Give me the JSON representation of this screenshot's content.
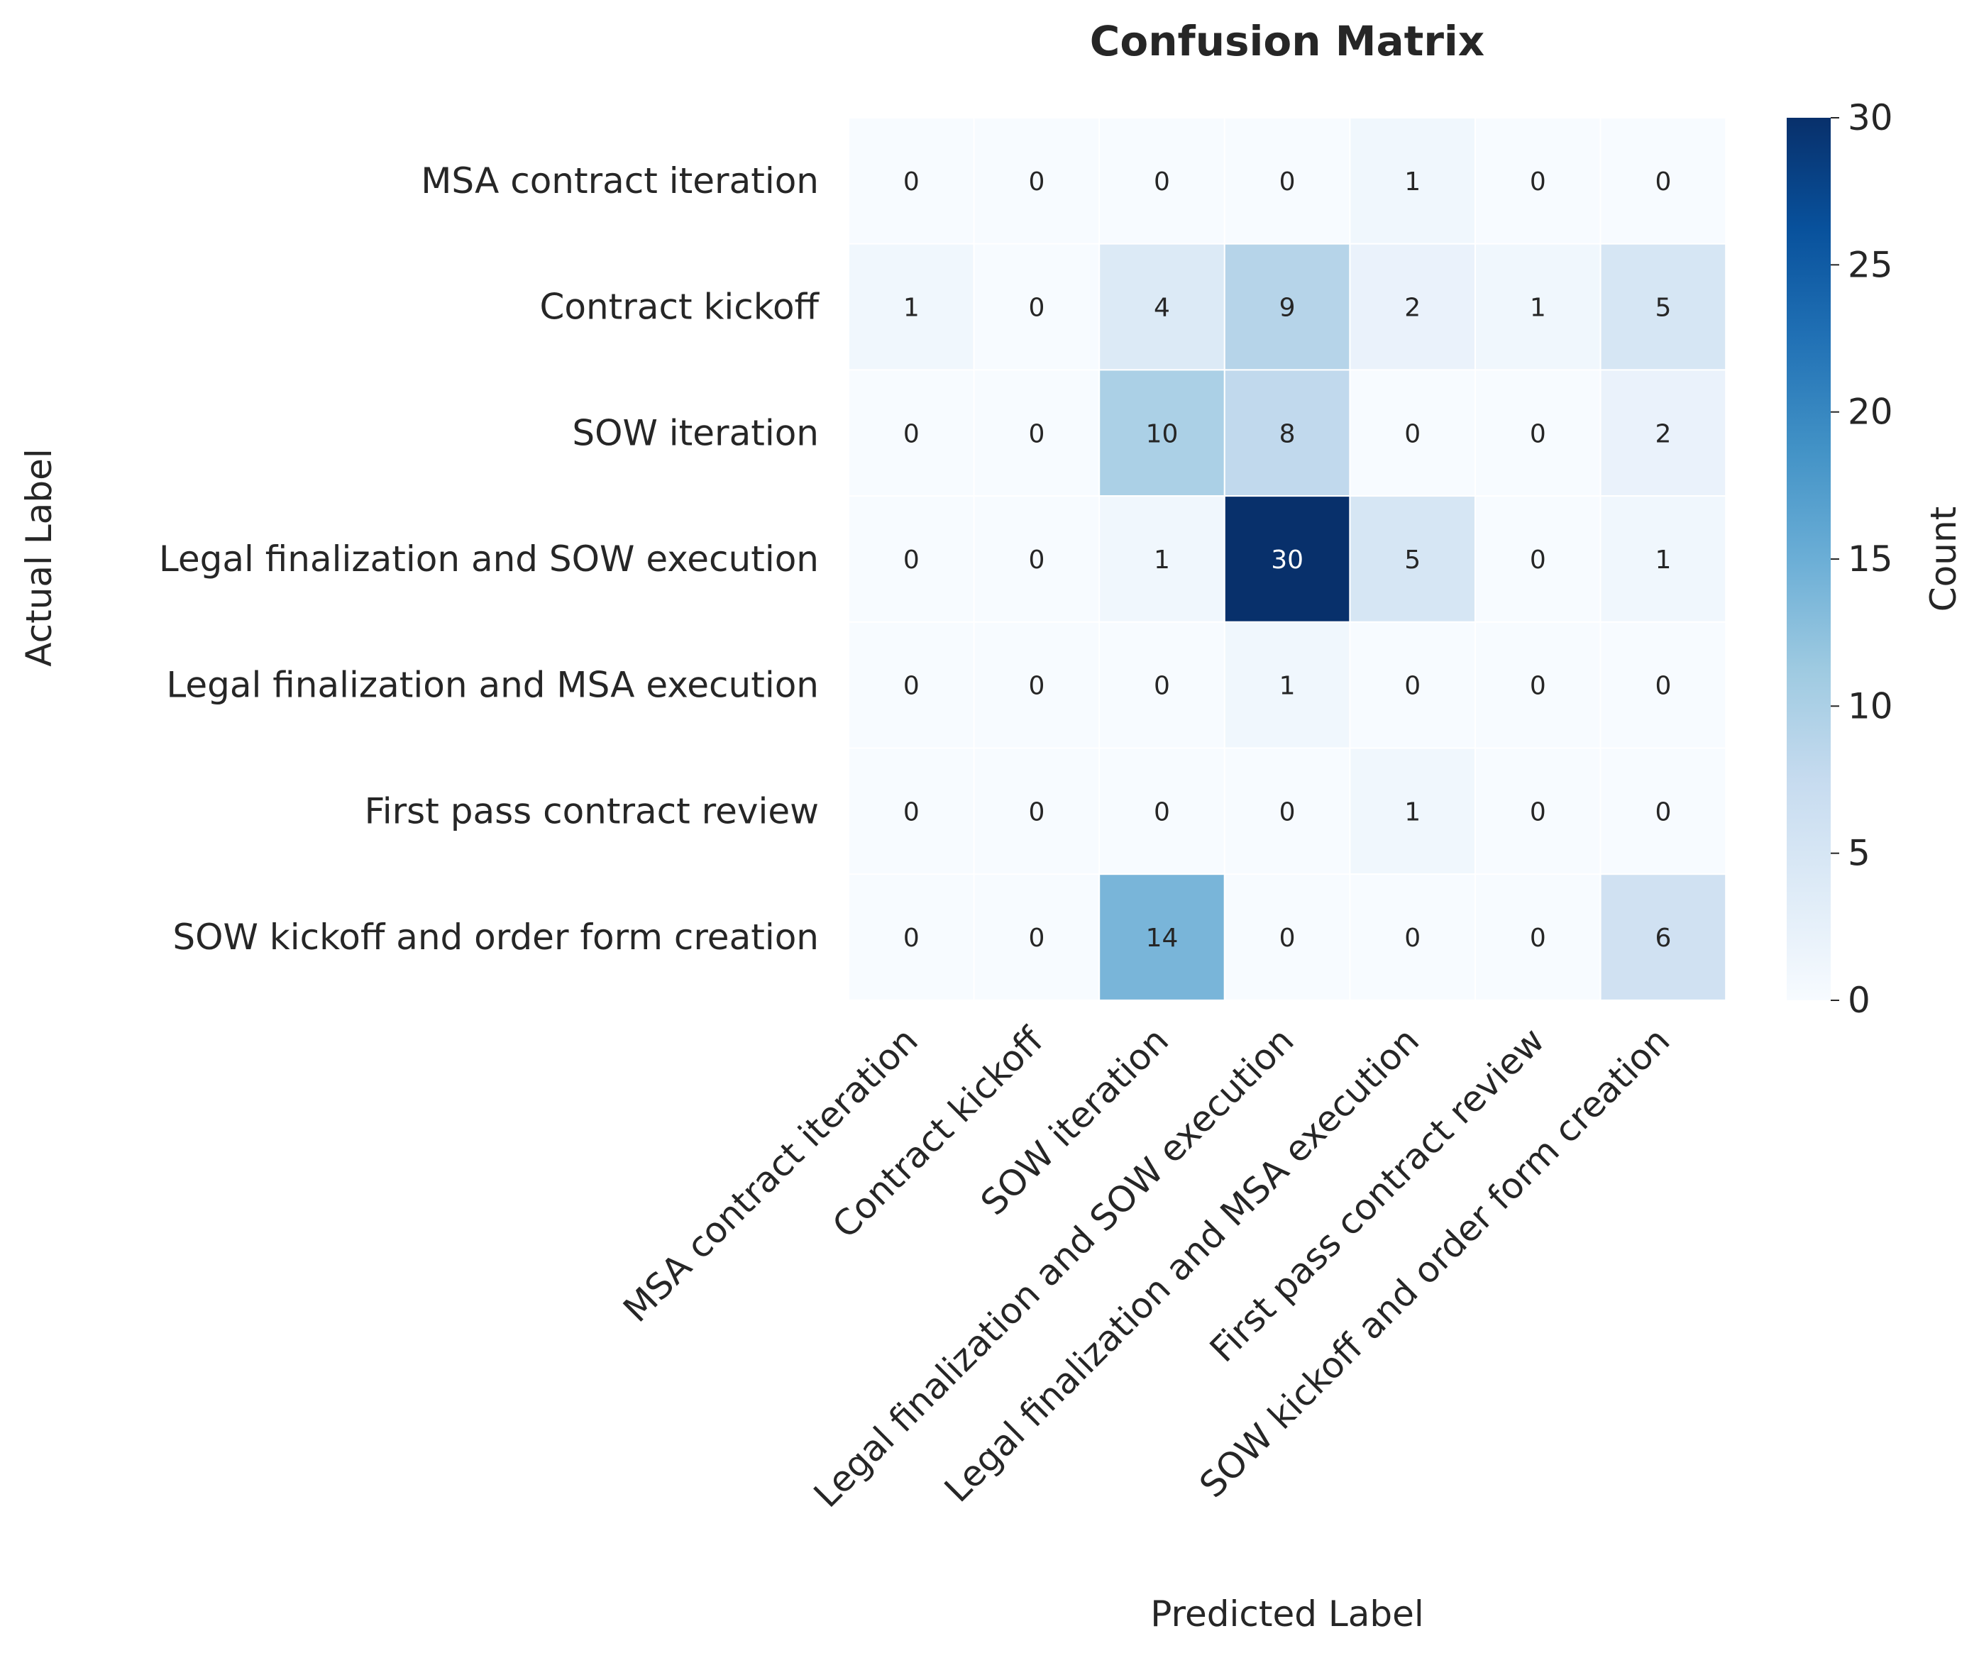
{
  "chart_data": {
    "type": "heatmap",
    "title": "Confusion Matrix",
    "xlabel": "Predicted Label",
    "ylabel": "Actual Label",
    "x_categories": [
      "MSA contract iteration",
      "Contract kickoff",
      "SOW iteration",
      "Legal finalization and SOW execution",
      "Legal finalization and MSA execution",
      "First pass contract review",
      "SOW kickoff and order form creation"
    ],
    "y_categories": [
      "MSA contract iteration",
      "Contract kickoff",
      "SOW iteration",
      "Legal finalization and SOW execution",
      "Legal finalization and MSA execution",
      "First pass contract review",
      "SOW kickoff and order form creation"
    ],
    "values": [
      [
        0,
        0,
        0,
        0,
        1,
        0,
        0
      ],
      [
        1,
        0,
        4,
        9,
        2,
        1,
        5
      ],
      [
        0,
        0,
        10,
        8,
        0,
        0,
        2
      ],
      [
        0,
        0,
        1,
        30,
        5,
        0,
        1
      ],
      [
        0,
        0,
        0,
        1,
        0,
        0,
        0
      ],
      [
        0,
        0,
        0,
        0,
        1,
        0,
        0
      ],
      [
        0,
        0,
        14,
        0,
        0,
        0,
        6
      ]
    ],
    "colorbar": {
      "label": "Count",
      "range": [
        0,
        30
      ],
      "ticks": [
        0,
        5,
        10,
        15,
        20,
        25,
        30
      ],
      "colormap": "Blues"
    },
    "annotations": true,
    "grid": false,
    "legend": "colorbar-right"
  },
  "colors": {
    "background": "#ffffff",
    "text": "#262626",
    "cell_border": "#ffffff"
  }
}
